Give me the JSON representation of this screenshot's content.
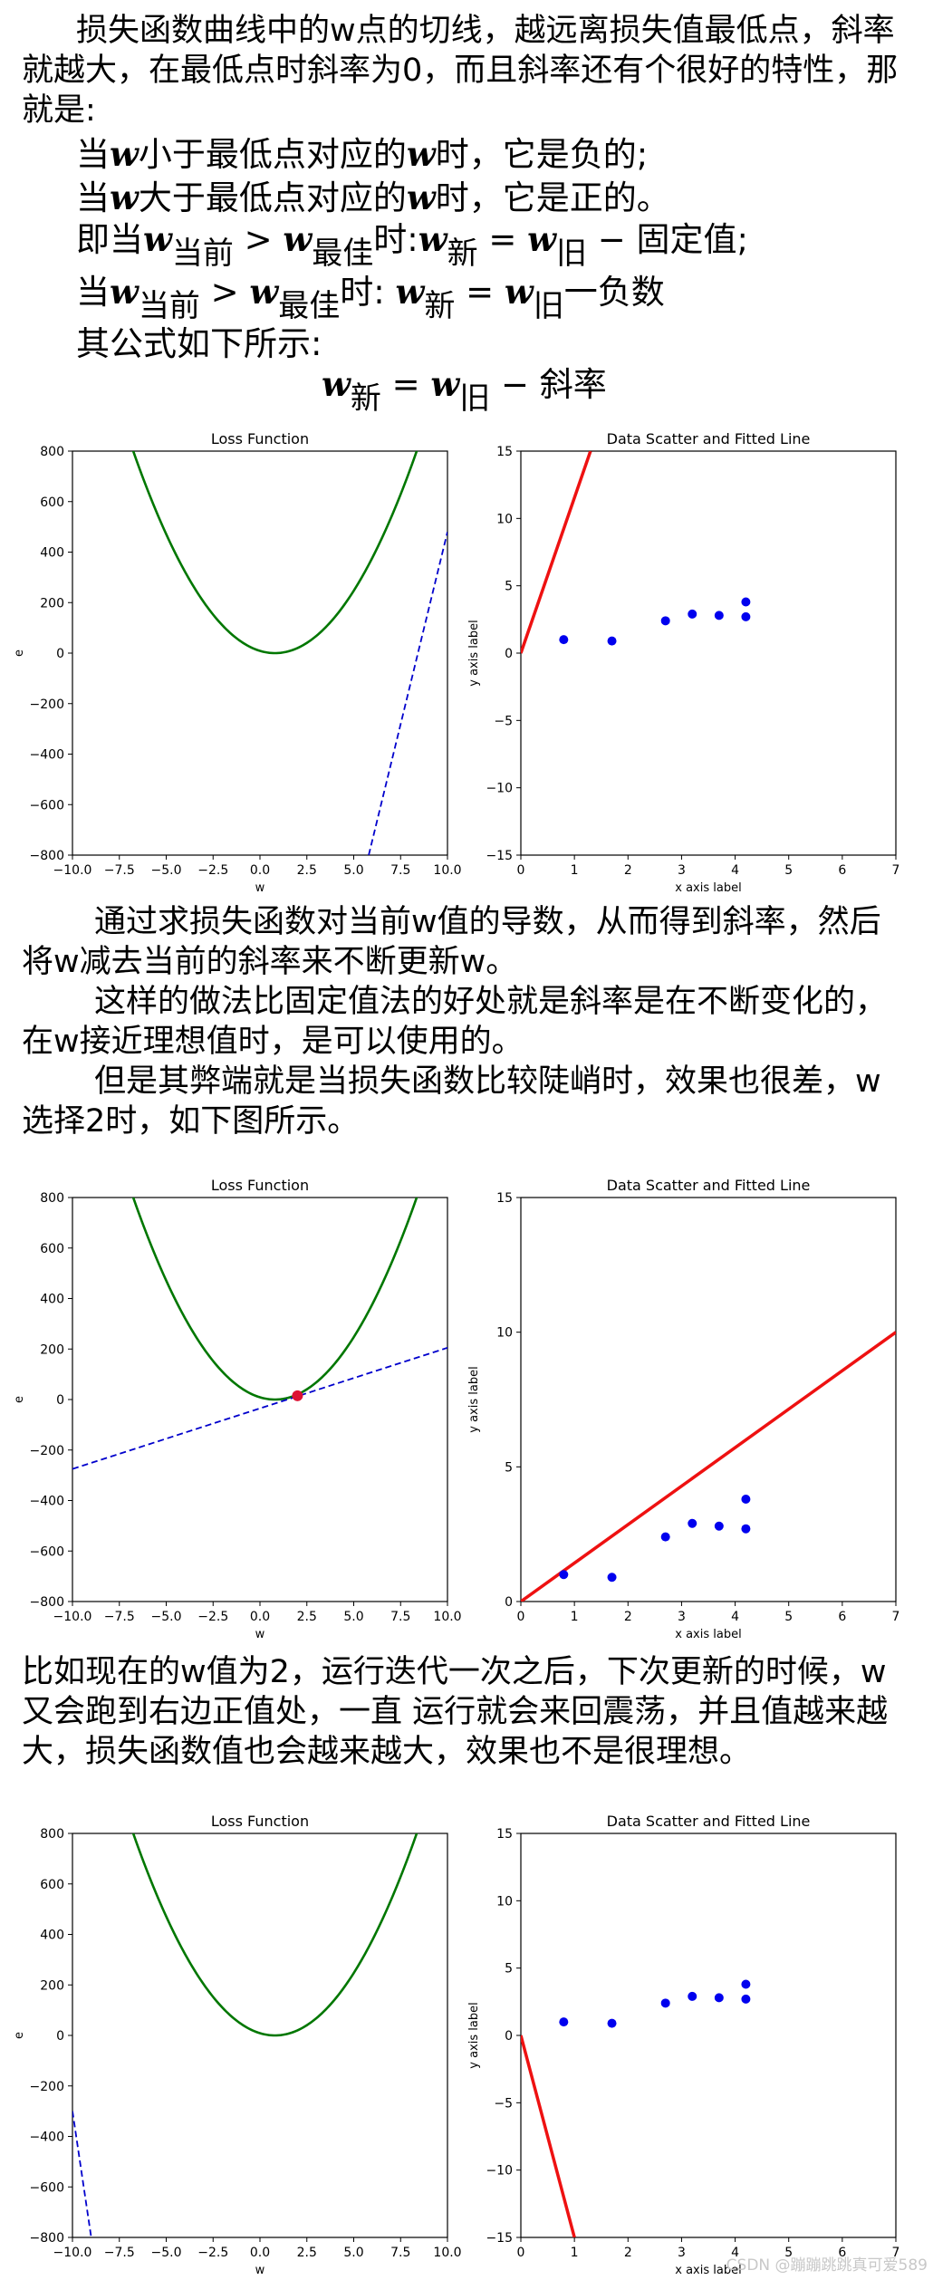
{
  "intro": {
    "para1": "损失函数曲线中的w点的切线，越远离损失值最低点，斜率就越大，在最低点时斜率为0，而且斜率还有个很好的特性，那就是:",
    "rule1": {
      "p": "当",
      "mid": "小于最低点对应的",
      "end": "时，它是负的;"
    },
    "rule2": {
      "p": "当",
      "mid": "大于最低点对应的",
      "end": "时，它是正的。"
    },
    "rule3": {
      "p": "即当",
      "s1": "当前",
      "gt": ">",
      "s2": "最佳",
      "t": "时:",
      "s3": "新",
      "eq": "=",
      "s4": "旧",
      "e": "− 固定值;"
    },
    "rule4": {
      "p": "当",
      "s1": "当前",
      "gt": ">",
      "s2": "最佳",
      "t": "时: ",
      "s3": "新",
      "eq": "=",
      "s4": "旧",
      "e": "一负数"
    },
    "formula_label": "其公式如下所示:",
    "formula": {
      "s1": "新",
      "eq": "=",
      "s2": "旧",
      "e": "− 斜率"
    }
  },
  "symbol_w": "w",
  "middle": {
    "para1": "通过求损失函数对当前w值的导数，从而得到斜率，然后将w减去当前的斜率来不断更新w。",
    "para2": "这样的做法比固定值法的好处就是斜率是在不断变化的，在w接近理想值时，是可以使用的。",
    "para3": "但是其弊端就是当损失函数比较陡峭时，效果也很差，w选择2时，如下图所示。"
  },
  "bottom": {
    "para1": "比如现在的w值为2，运行迭代一次之后，下次更新的时候，w又会跑到右边正值处，一直 运行就会来回震荡，并且值越来越大，损失函数值也会越来越大，效果也不是很理想。"
  },
  "watermark": "CSDN @蹦蹦跳跳真可爱589",
  "chart_data": [
    {
      "type": "line",
      "title": "Loss Function",
      "xlabel": "w",
      "ylabel": "e",
      "xlim": [
        -10,
        10
      ],
      "ylim": [
        -800,
        800
      ],
      "xticks": [
        -10,
        -7.5,
        -5,
        -2.5,
        0,
        2.5,
        5,
        7.5,
        10
      ],
      "yticks": [
        -800,
        -600,
        -400,
        -200,
        0,
        200,
        400,
        600,
        800
      ],
      "xtick_labels": [
        "−10.0",
        "−7.5",
        "−5.0",
        "−2.5",
        "0.0",
        "2.5",
        "5.0",
        "7.5",
        "10.0"
      ],
      "ytick_labels": [
        "−800",
        "−600",
        "−400",
        "−200",
        "0",
        "200",
        "400",
        "600",
        "800"
      ],
      "curve": {
        "color": "#007700",
        "min_w": 0.8,
        "k": 14
      },
      "tangent": {
        "color": "#0000cc",
        "points": [
          [
            5.8,
            -800
          ],
          [
            10,
            480
          ]
        ]
      },
      "marker": null
    },
    {
      "type": "scatter",
      "title": "Data Scatter and Fitted Line",
      "xlabel": "x axis label",
      "ylabel": "y axis label",
      "xlim": [
        0,
        7
      ],
      "ylim": [
        -15,
        15
      ],
      "xticks": [
        0,
        1,
        2,
        3,
        4,
        5,
        6,
        7
      ],
      "yticks": [
        -15,
        -10,
        -5,
        0,
        5,
        10,
        15
      ],
      "xtick_labels": [
        "0",
        "1",
        "2",
        "3",
        "4",
        "5",
        "6",
        "7"
      ],
      "ytick_labels": [
        "−15",
        "−10",
        "−5",
        "0",
        "5",
        "10",
        "15"
      ],
      "points": [
        [
          0.8,
          1.0
        ],
        [
          1.7,
          0.9
        ],
        [
          2.7,
          2.4
        ],
        [
          3.2,
          2.9
        ],
        [
          3.7,
          2.8
        ],
        [
          4.2,
          3.8
        ],
        [
          4.2,
          2.7
        ]
      ],
      "point_color": "#0000ee",
      "line": {
        "color": "#ee1111",
        "points": [
          [
            0,
            0
          ],
          [
            1.3,
            15
          ]
        ]
      }
    },
    {
      "type": "line",
      "title": "Loss Function",
      "xlabel": "w",
      "ylabel": "e",
      "xlim": [
        -10,
        10
      ],
      "ylim": [
        -800,
        800
      ],
      "xticks": [
        -10,
        -7.5,
        -5,
        -2.5,
        0,
        2.5,
        5,
        7.5,
        10
      ],
      "yticks": [
        -800,
        -600,
        -400,
        -200,
        0,
        200,
        400,
        600,
        800
      ],
      "xtick_labels": [
        "−10.0",
        "−7.5",
        "−5.0",
        "−2.5",
        "0.0",
        "2.5",
        "5.0",
        "7.5",
        "10.0"
      ],
      "ytick_labels": [
        "−800",
        "−600",
        "−400",
        "−200",
        "0",
        "200",
        "400",
        "600",
        "800"
      ],
      "curve": {
        "color": "#007700",
        "min_w": 0.8,
        "k": 14
      },
      "tangent": {
        "color": "#0000cc",
        "points": [
          [
            -10,
            -275
          ],
          [
            10,
            205
          ]
        ]
      },
      "marker": {
        "w": 2,
        "e": 15,
        "color": "#dd1133"
      }
    },
    {
      "type": "scatter",
      "title": "Data Scatter and Fitted Line",
      "xlabel": "x axis label",
      "ylabel": "y axis label",
      "xlim": [
        0,
        7
      ],
      "ylim": [
        0,
        15
      ],
      "xticks": [
        0,
        1,
        2,
        3,
        4,
        5,
        6,
        7
      ],
      "yticks": [
        0,
        5,
        10,
        15
      ],
      "xtick_labels": [
        "0",
        "1",
        "2",
        "3",
        "4",
        "5",
        "6",
        "7"
      ],
      "ytick_labels": [
        "0",
        "5",
        "10",
        "15"
      ],
      "points": [
        [
          0.8,
          1.0
        ],
        [
          1.7,
          0.9
        ],
        [
          2.7,
          2.4
        ],
        [
          3.2,
          2.9
        ],
        [
          3.7,
          2.8
        ],
        [
          4.2,
          3.8
        ],
        [
          4.2,
          2.7
        ]
      ],
      "point_color": "#0000ee",
      "line": {
        "color": "#ee1111",
        "points": [
          [
            0,
            0
          ],
          [
            7,
            10
          ]
        ]
      }
    },
    {
      "type": "line",
      "title": "Loss Function",
      "xlabel": "w",
      "ylabel": "e",
      "xlim": [
        -10,
        10
      ],
      "ylim": [
        -800,
        800
      ],
      "xticks": [
        -10,
        -7.5,
        -5,
        -2.5,
        0,
        2.5,
        5,
        7.5,
        10
      ],
      "yticks": [
        -800,
        -600,
        -400,
        -200,
        0,
        200,
        400,
        600,
        800
      ],
      "xtick_labels": [
        "−10.0",
        "−7.5",
        "−5.0",
        "−2.5",
        "0.0",
        "2.5",
        "5.0",
        "7.5",
        "10.0"
      ],
      "ytick_labels": [
        "−800",
        "−600",
        "−400",
        "−200",
        "0",
        "200",
        "400",
        "600",
        "800"
      ],
      "curve": {
        "color": "#007700",
        "min_w": 0.8,
        "k": 14
      },
      "tangent": {
        "color": "#0000cc",
        "points": [
          [
            -10,
            -300
          ],
          [
            -9.0,
            -800
          ]
        ]
      },
      "marker": null
    },
    {
      "type": "scatter",
      "title": "Data Scatter and Fitted Line",
      "xlabel": "x axis label",
      "ylabel": "y axis label",
      "xlim": [
        0,
        7
      ],
      "ylim": [
        -15,
        15
      ],
      "xticks": [
        0,
        1,
        2,
        3,
        4,
        5,
        6,
        7
      ],
      "yticks": [
        -15,
        -10,
        -5,
        0,
        5,
        10,
        15
      ],
      "xtick_labels": [
        "0",
        "1",
        "2",
        "3",
        "4",
        "5",
        "6",
        "7"
      ],
      "ytick_labels": [
        "−15",
        "−10",
        "−5",
        "0",
        "5",
        "10",
        "15"
      ],
      "points": [
        [
          0.8,
          1.0
        ],
        [
          1.7,
          0.9
        ],
        [
          2.7,
          2.4
        ],
        [
          3.2,
          2.9
        ],
        [
          3.7,
          2.8
        ],
        [
          4.2,
          3.8
        ],
        [
          4.2,
          2.7
        ]
      ],
      "point_color": "#0000ee",
      "line": {
        "color": "#ee1111",
        "points": [
          [
            0,
            0
          ],
          [
            1.0,
            -15
          ]
        ]
      }
    }
  ]
}
